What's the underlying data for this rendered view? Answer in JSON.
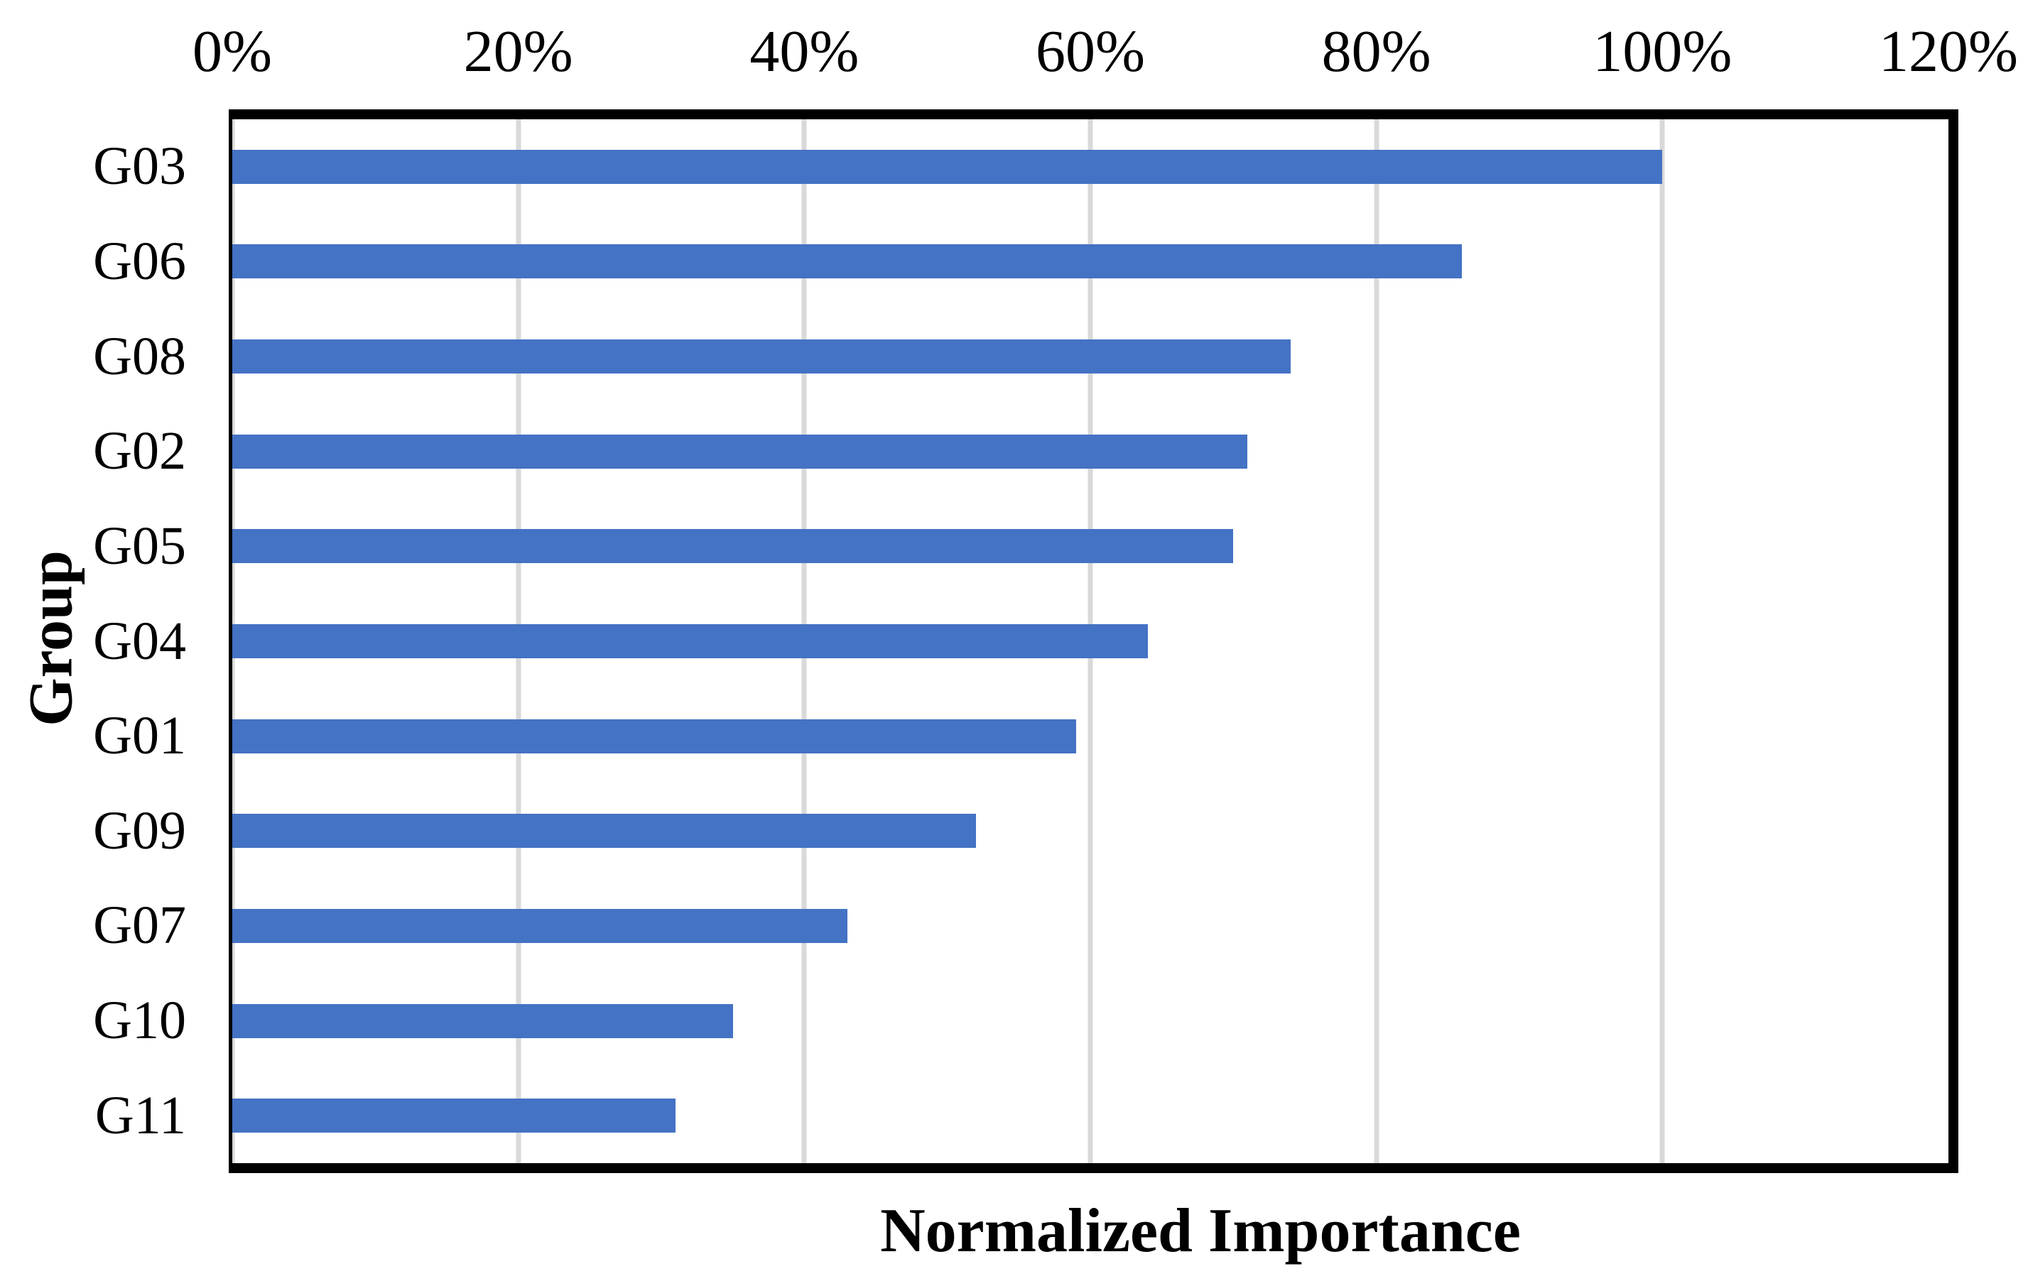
{
  "chart_data": {
    "type": "bar",
    "orientation": "horizontal",
    "xlabel": "Normalized Importance",
    "ylabel": "Group",
    "categories": [
      "G03",
      "G06",
      "G08",
      "G02",
      "G05",
      "G04",
      "G01",
      "G09",
      "G07",
      "G10",
      "G11"
    ],
    "values": [
      100,
      86,
      74,
      71,
      70,
      64,
      59,
      52,
      43,
      35,
      31
    ],
    "unit": "%",
    "xlim": [
      0,
      120
    ],
    "x_ticks": [
      "0%",
      "20%",
      "40%",
      "60%",
      "80%",
      "100%",
      "120%"
    ],
    "grid": true,
    "legend": false
  },
  "colors": {
    "bar": "#4472C4",
    "gridline": "#D9D9D9",
    "axis": "#000000",
    "background": "#FFFFFF"
  }
}
